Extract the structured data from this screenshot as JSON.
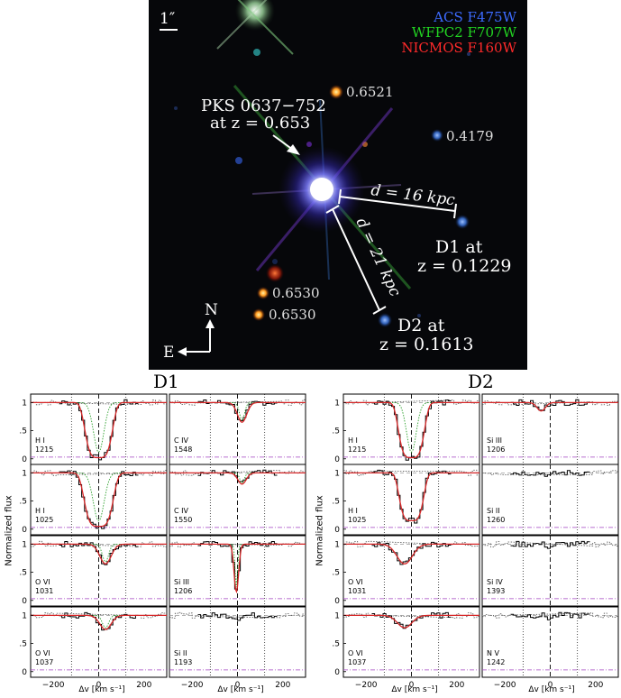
{
  "image": {
    "scale_bar": "1″",
    "filters": [
      {
        "label": "ACS F475W",
        "color": "#3d6bff"
      },
      {
        "label": "WFPC2 F707W",
        "color": "#22d422"
      },
      {
        "label": "NICMOS F160W",
        "color": "#ff2a2a"
      }
    ],
    "qso_name": "PKS 0637−752",
    "qso_z": "at z = 0.653",
    "d1_sep": "d = 16 kpc",
    "d2_sep": "d = 21 kpc",
    "d1_label": "D1 at",
    "d1_z": "z = 0.1229",
    "d2_label": "D2 at",
    "d2_z": "z = 0.1613",
    "redshifts": [
      "0.6521",
      "0.4179",
      "0.6530",
      "0.6530"
    ],
    "compass_n": "N",
    "compass_e": "E"
  },
  "titles": {
    "d1": "D1",
    "d2": "D2"
  },
  "axis": {
    "ylabel": "Normalized flux",
    "xlabel": "Δv [km s⁻¹]",
    "xticks": [
      "−200",
      "0",
      "200"
    ],
    "yticks": [
      "0",
      ".5",
      "1"
    ]
  },
  "chart_data": {
    "type": "line",
    "xlim": [
      -300,
      300
    ],
    "ylim": [
      -0.1,
      1.15
    ],
    "panels": [
      {
        "group": "D1",
        "col": 0,
        "row": 0,
        "ion": "H I",
        "wave": "1215",
        "model": "broad",
        "center": 0,
        "width": 90,
        "depth": 0.98,
        "fit": true,
        "green": true
      },
      {
        "group": "D1",
        "col": 1,
        "row": 0,
        "ion": "C IV",
        "wave": "1548",
        "model": "weak",
        "center": 20,
        "width": 45,
        "depth": 0.35,
        "fit": true,
        "green": true
      },
      {
        "group": "D1",
        "col": 0,
        "row": 1,
        "ion": "H I",
        "wave": "1025",
        "model": "broad",
        "center": 0,
        "width": 95,
        "depth": 0.95,
        "fit": true,
        "green": true
      },
      {
        "group": "D1",
        "col": 1,
        "row": 1,
        "ion": "C IV",
        "wave": "1550",
        "model": "weak",
        "center": 20,
        "width": 40,
        "depth": 0.2,
        "fit": true,
        "green": true
      },
      {
        "group": "D1",
        "col": 0,
        "row": 2,
        "ion": "O VI",
        "wave": "1031",
        "model": "medium",
        "center": 30,
        "width": 55,
        "depth": 0.35,
        "fit": true,
        "green": true
      },
      {
        "group": "D1",
        "col": 1,
        "row": 2,
        "ion": "Si III",
        "wave": "1206",
        "model": "narrow",
        "center": -5,
        "width": 22,
        "depth": 0.85,
        "fit": true,
        "green": true
      },
      {
        "group": "D1",
        "col": 0,
        "row": 3,
        "ion": "O VI",
        "wave": "1037",
        "model": "medium",
        "center": 30,
        "width": 55,
        "depth": 0.25,
        "fit": true,
        "green": true
      },
      {
        "group": "D1",
        "col": 1,
        "row": 3,
        "ion": "Si II",
        "wave": "1193",
        "model": "none",
        "center": 0,
        "width": 30,
        "depth": 0.05,
        "fit": false,
        "green": false
      },
      {
        "group": "D2",
        "col": 0,
        "row": 0,
        "ion": "H I",
        "wave": "1215",
        "model": "broad",
        "center": 0,
        "width": 85,
        "depth": 0.98,
        "fit": true,
        "green": true
      },
      {
        "group": "D2",
        "col": 1,
        "row": 0,
        "ion": "Si III",
        "wave": "1206",
        "model": "weak",
        "center": -40,
        "width": 40,
        "depth": 0.15,
        "fit": true,
        "green": false
      },
      {
        "group": "D2",
        "col": 0,
        "row": 1,
        "ion": "H I",
        "wave": "1025",
        "model": "broad",
        "center": 0,
        "width": 80,
        "depth": 0.85,
        "fit": true,
        "green": false
      },
      {
        "group": "D2",
        "col": 1,
        "row": 1,
        "ion": "Si II",
        "wave": "1260",
        "model": "none",
        "center": 0,
        "width": 30,
        "depth": 0.05,
        "fit": false,
        "green": false
      },
      {
        "group": "D2",
        "col": 0,
        "row": 2,
        "ion": "O VI",
        "wave": "1031",
        "model": "medium",
        "center": -30,
        "width": 75,
        "depth": 0.35,
        "fit": true,
        "green": false
      },
      {
        "group": "D2",
        "col": 1,
        "row": 2,
        "ion": "Si IV",
        "wave": "1393",
        "model": "none",
        "center": 0,
        "width": 30,
        "depth": 0.05,
        "fit": false,
        "green": false
      },
      {
        "group": "D2",
        "col": 0,
        "row": 3,
        "ion": "O VI",
        "wave": "1037",
        "model": "medium",
        "center": -30,
        "width": 70,
        "depth": 0.22,
        "fit": true,
        "green": false
      },
      {
        "group": "D2",
        "col": 1,
        "row": 3,
        "ion": "N V",
        "wave": "1242",
        "model": "none",
        "center": 0,
        "width": 30,
        "depth": 0.05,
        "fit": false,
        "green": false
      }
    ]
  }
}
